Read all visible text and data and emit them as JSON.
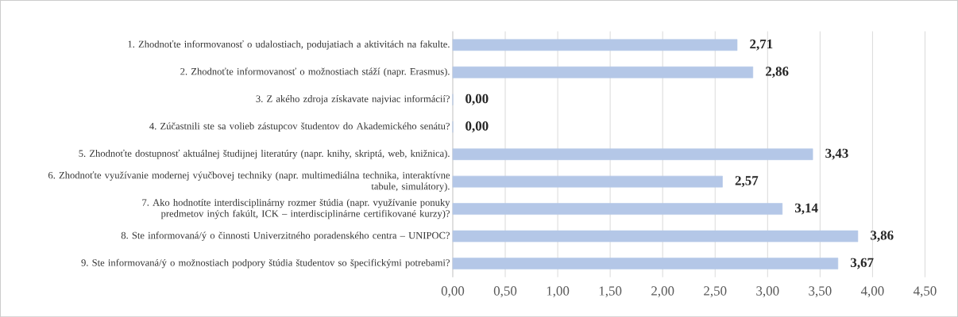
{
  "chart_data": {
    "type": "bar",
    "orientation": "horizontal",
    "categories": [
      "1. Zhodnoťte informovanosť o udalostiach, podujatiach a aktivitách na fakulte.",
      "2. Zhodnoťte informovanosť o možnostiach stáží (napr. Erasmus).",
      "3. Z akého zdroja získavate najviac informácií?",
      "4. Zúčastnili ste sa volieb zástupcov študentov do Akademického senátu?",
      "5. Zhodnoťte dostupnosť aktuálnej študijnej literatúry (napr. knihy, skriptá, web, knižnica).",
      "6. Zhodnoťte využívanie modernej výučbovej techniky (napr. multimediálna technika, interaktívne tabule, simulátory).",
      "7. Ako hodnotíte interdisciplinárny rozmer štúdia (napr. využívanie ponuky predmetov iných fakúlt, ICK – interdisciplinárne certifikované kurzy)?",
      "8. Ste informovaná/ý o činnosti Univerzitného poradenského centra – UNIPOC?",
      "9. Ste informovaná/ý o možnostiach podpory štúdia študentov so špecifickými potrebami?"
    ],
    "values": [
      2.71,
      2.86,
      0,
      0,
      3.43,
      2.57,
      3.14,
      3.86,
      3.67
    ],
    "value_labels": [
      "2,71",
      "2,86",
      "0,00",
      "0,00",
      "3,43",
      "2,57",
      "3,14",
      "3,86",
      "3,67"
    ],
    "color": "#b4c7e7",
    "xlim": [
      0,
      4.5
    ],
    "xticks": [
      {
        "value": 0,
        "label": "0,00"
      },
      {
        "value": 0.5,
        "label": "0,50"
      },
      {
        "value": 1,
        "label": "1,00"
      },
      {
        "value": 1.5,
        "label": "1,50"
      },
      {
        "value": 2,
        "label": "2,00"
      },
      {
        "value": 2.5,
        "label": "2,50"
      },
      {
        "value": 3,
        "label": "3,00"
      },
      {
        "value": 3.5,
        "label": "3,50"
      },
      {
        "value": 4,
        "label": "4,00"
      },
      {
        "value": 4.5,
        "label": "4,50"
      }
    ],
    "grid": "x"
  }
}
